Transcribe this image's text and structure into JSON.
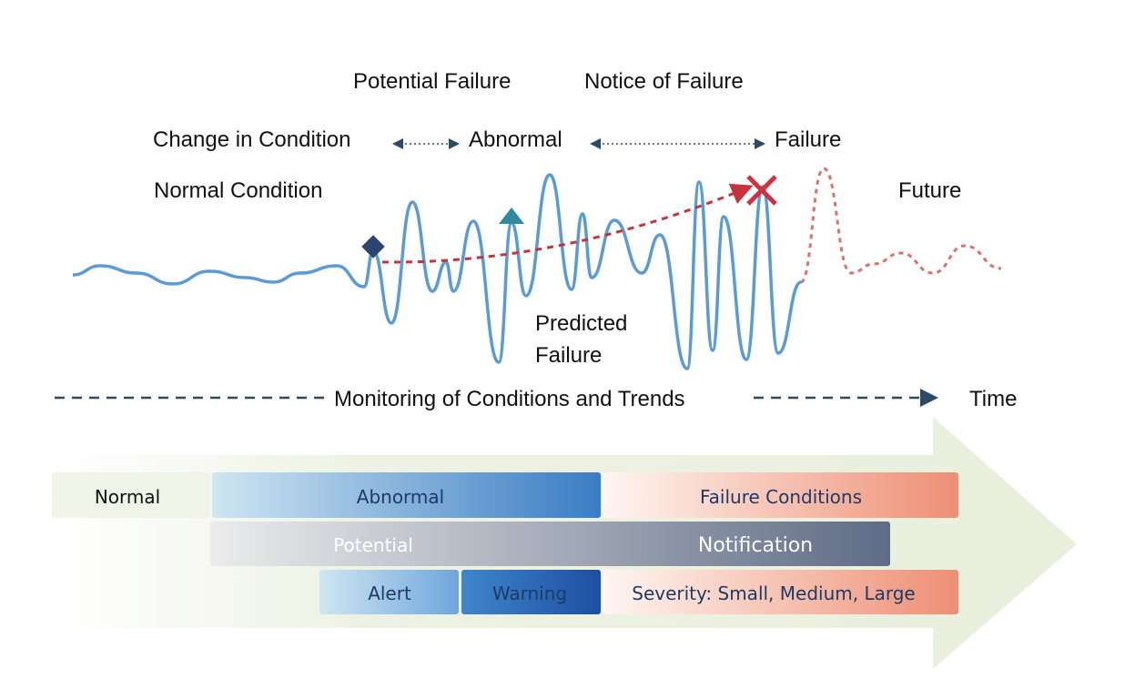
{
  "phase_labels": {
    "potential_failure": "Potential Failure",
    "notice_of_failure": "Notice of Failure",
    "change_in_condition": "Change in Condition",
    "abnormal": "Abnormal",
    "failure": "Failure",
    "normal_condition": "Normal Condition",
    "future": "Future",
    "predicted_failure": [
      "Predicted",
      "Failure"
    ]
  },
  "timeline": {
    "monitoring": "Monitoring of Conditions and Trends",
    "time": "Time"
  },
  "bands": {
    "status": [
      "Normal",
      "Abnormal",
      "Failure Conditions"
    ],
    "notification": [
      "Potential",
      "Notification"
    ],
    "severity": [
      "Alert",
      "Warning",
      "Severity: Small, Medium, Large"
    ]
  }
}
